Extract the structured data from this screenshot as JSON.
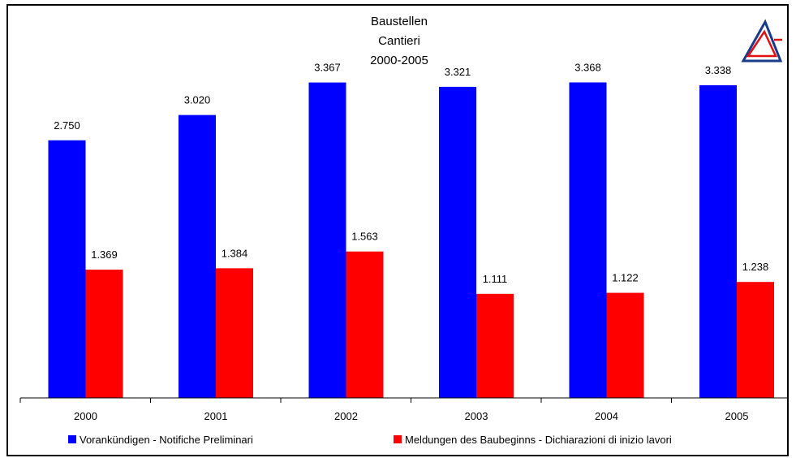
{
  "chart_data": {
    "type": "bar",
    "title_lines": [
      "Baustellen",
      "Cantieri",
      "2000-2005"
    ],
    "categories": [
      "2000",
      "2001",
      "2002",
      "2003",
      "2004",
      "2005"
    ],
    "series": [
      {
        "name": "Vorankündigen - Notifiche Preliminari",
        "color": "#0000ff",
        "values": [
          2750,
          3020,
          3367,
          3321,
          3368,
          3338
        ],
        "labels": [
          "2.750",
          "3.020",
          "3.367",
          "3.321",
          "3.368",
          "3.338"
        ]
      },
      {
        "name": "Meldungen des Baubeginns - Dichiarazioni di inizio lavori",
        "color": "#ff0000",
        "values": [
          1369,
          1384,
          1563,
          1111,
          1122,
          1238
        ],
        "labels": [
          "1.369",
          "1.384",
          "1.563",
          "1.111",
          "1.122",
          "1.238"
        ]
      }
    ],
    "ylim": [
      0,
      3950
    ],
    "grid": false,
    "legend_position": "bottom"
  },
  "logo": {
    "icon": "triangle-logo-icon",
    "color_outer": "#1a3a8a",
    "color_inner": "#e01010"
  }
}
